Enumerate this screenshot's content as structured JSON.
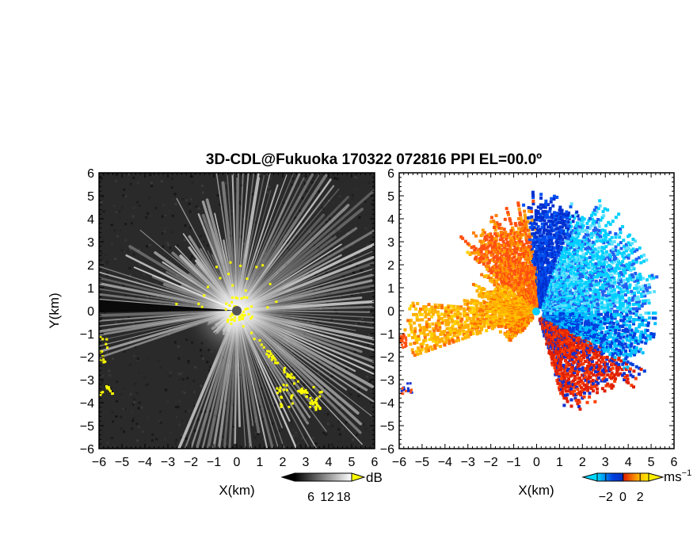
{
  "figure": {
    "title": "3D-CDL@Fukuoka 170322 072816 PPI EL=00.0º"
  },
  "chart_data": [
    {
      "type": "heatmap",
      "panel": "left",
      "description_of_field": "PPI radar signal intensity",
      "xlabel": "X(km)",
      "ylabel": "Y(km)",
      "xlim": [
        -6,
        6
      ],
      "ylim": [
        -6,
        6
      ],
      "xticks": [
        "-6",
        "-5",
        "-4",
        "-3",
        "-2",
        "-1",
        "0",
        "1",
        "2",
        "3",
        "4",
        "5",
        "6"
      ],
      "yticks": [
        "6",
        "5",
        "4",
        "3",
        "2",
        "1",
        "0",
        "-1",
        "-2",
        "-3",
        "-4",
        "-5",
        "-6"
      ],
      "colorbar": {
        "unit": "dB",
        "ticks": [
          "6",
          "12",
          "18"
        ],
        "tick_values": [
          6,
          12,
          18
        ],
        "range": [
          0,
          21
        ],
        "colors": [
          "#000000",
          "#ffffff"
        ],
        "overflow_color": "#ffff00"
      },
      "background_color": "#2a2a2a",
      "highlight_color": "#ffff00"
    },
    {
      "type": "heatmap",
      "panel": "right",
      "description_of_field": "PPI radial velocity",
      "xlabel": "X(km)",
      "ylabel": "",
      "xlim": [
        -6,
        6
      ],
      "ylim": [
        -6,
        6
      ],
      "xticks": [
        "-6",
        "-5",
        "-4",
        "-3",
        "-2",
        "-1",
        "0",
        "1",
        "2",
        "3",
        "4",
        "5",
        "6"
      ],
      "yticks": [
        "6",
        "5",
        "4",
        "3",
        "2",
        "1",
        "0",
        "-1",
        "-2",
        "-3",
        "-4",
        "-5",
        "-6"
      ],
      "colorbar": {
        "unit": "ms",
        "unit_superscript": "−1",
        "ticks": [
          "−2",
          "0",
          "2"
        ],
        "tick_values": [
          -2,
          0,
          2
        ],
        "range": [
          -3,
          3
        ],
        "colors": [
          "#00d8ff",
          "#0040e0",
          "#e02000",
          "#ffb000",
          "#ffee00"
        ]
      },
      "background_color": "#ffffff"
    }
  ]
}
